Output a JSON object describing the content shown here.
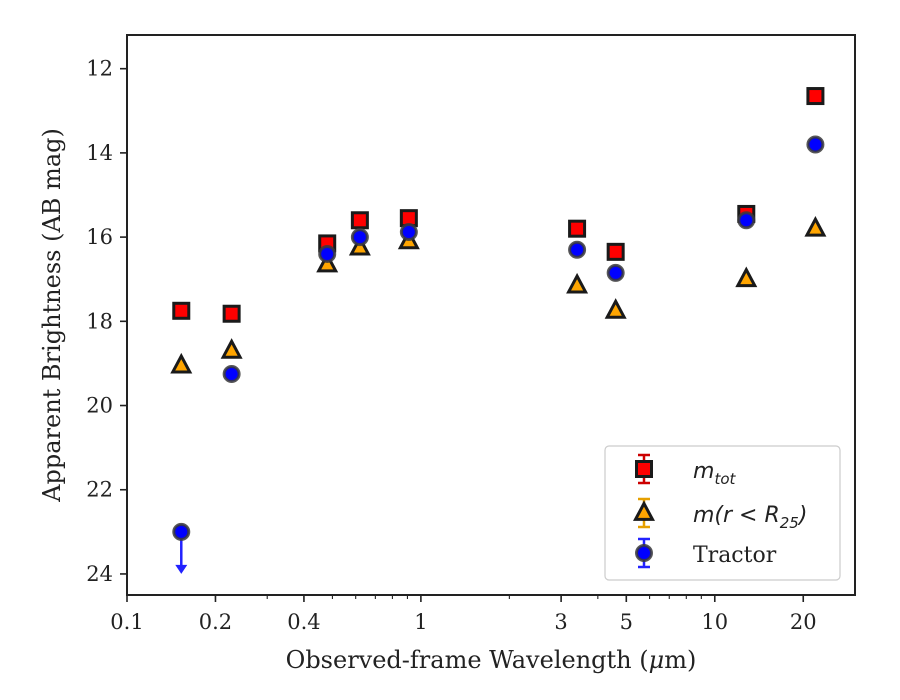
{
  "chart_data": {
    "type": "scatter",
    "xscale": "log",
    "yinverted": true,
    "xlabel_pre": "Observed-frame Wavelength (",
    "xlabel_mu": "μ",
    "xlabel_post": "m)",
    "ylabel": "Apparent Brightness (AB mag)",
    "xlim": [
      0.1,
      30
    ],
    "ylim": [
      24.5,
      11.2
    ],
    "x_ticks": [
      {
        "value": 0.1,
        "label": "0.1"
      },
      {
        "value": 0.2,
        "label": "0.2"
      },
      {
        "value": 0.4,
        "label": "0.4"
      },
      {
        "value": 1,
        "label": "1"
      },
      {
        "value": 3,
        "label": "3"
      },
      {
        "value": 5,
        "label": "5"
      },
      {
        "value": 10,
        "label": "10"
      },
      {
        "value": 20,
        "label": "20"
      }
    ],
    "y_ticks": [
      {
        "value": 12,
        "label": "12"
      },
      {
        "value": 14,
        "label": "14"
      },
      {
        "value": 16,
        "label": "16"
      },
      {
        "value": 18,
        "label": "18"
      },
      {
        "value": 20,
        "label": "20"
      },
      {
        "value": 22,
        "label": "22"
      },
      {
        "value": 24,
        "label": "24"
      }
    ],
    "legend_placement": "lower-right",
    "series": [
      {
        "name": "m_tot",
        "legend_math": "m",
        "legend_sub": "tot",
        "marker": "square",
        "color": "#ff0000",
        "errorcolor": "#cc0000",
        "x": [
          0.153,
          0.227,
          0.48,
          0.62,
          0.91,
          3.4,
          4.6,
          12.8,
          22.0
        ],
        "y": [
          17.75,
          17.82,
          16.15,
          15.6,
          15.55,
          15.8,
          16.35,
          15.45,
          12.65
        ]
      },
      {
        "name": "m(r < R_25)",
        "legend_math": "m(r < R",
        "legend_sub": "25",
        "legend_close": ")",
        "marker": "triangle",
        "color": "#ffa500",
        "errorcolor": "#e6a000",
        "x": [
          0.153,
          0.227,
          0.48,
          0.62,
          0.91,
          3.4,
          4.6,
          12.8,
          22.0
        ],
        "y": [
          19.05,
          18.7,
          16.65,
          16.25,
          16.1,
          17.15,
          17.75,
          17.0,
          15.8
        ]
      },
      {
        "name": "Tractor",
        "marker": "circle",
        "color": "#0000ff",
        "errorcolor": "#2222ff",
        "x": [
          0.153,
          0.227,
          0.48,
          0.62,
          0.91,
          3.4,
          4.6,
          12.8,
          22.0
        ],
        "y": [
          23.0,
          19.25,
          16.4,
          16.0,
          15.88,
          16.3,
          16.85,
          15.6,
          13.8
        ],
        "upper_limit_index": 0
      }
    ]
  }
}
